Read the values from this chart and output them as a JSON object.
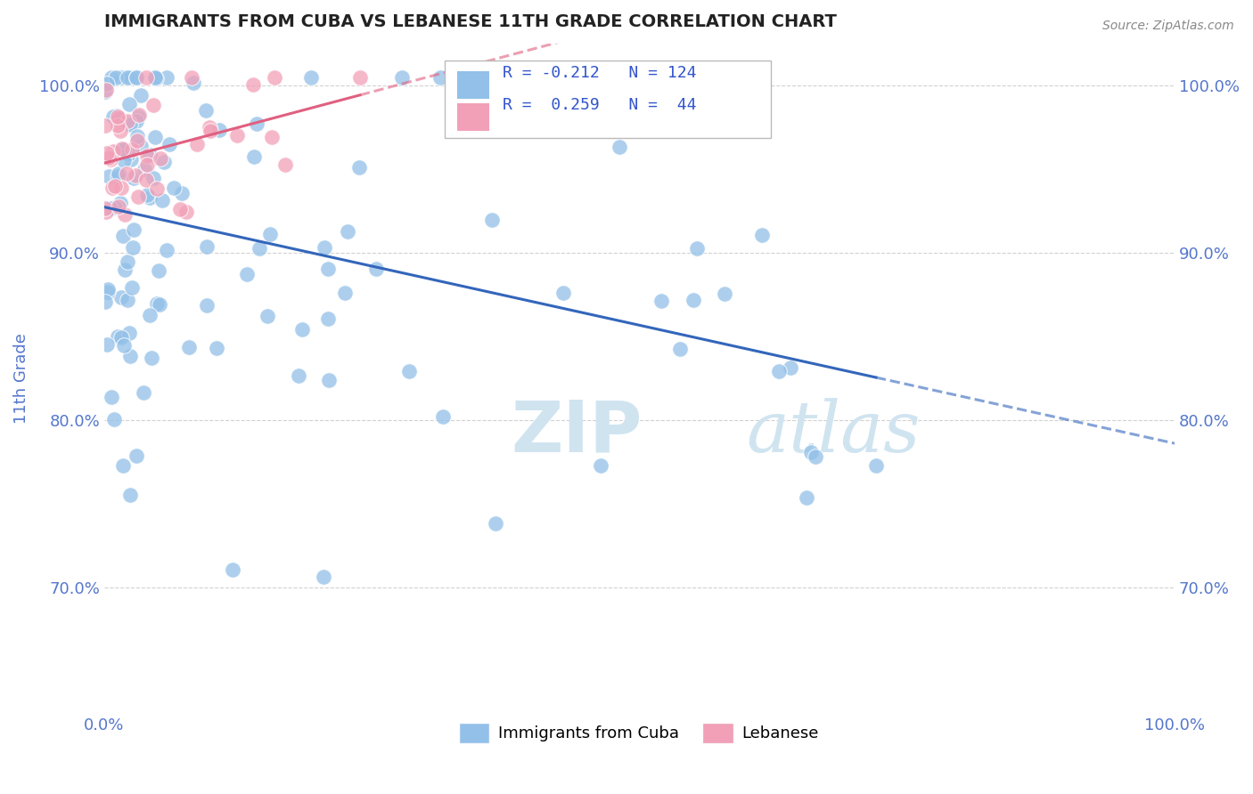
{
  "title": "IMMIGRANTS FROM CUBA VS LEBANESE 11TH GRADE CORRELATION CHART",
  "source": "Source: ZipAtlas.com",
  "ylabel": "11th Grade",
  "xlim": [
    0.0,
    1.0
  ],
  "ylim": [
    0.625,
    1.025
  ],
  "x_tick_labels": [
    "0.0%",
    "100.0%"
  ],
  "y_tick_labels": [
    "70.0%",
    "80.0%",
    "90.0%",
    "100.0%"
  ],
  "y_tick_values": [
    0.7,
    0.8,
    0.9,
    1.0
  ],
  "legend_labels": [
    "Immigrants from Cuba",
    "Lebanese"
  ],
  "legend_r_cuba": "R = -0.212",
  "legend_n_cuba": "N = 124",
  "legend_r_leb": "R =  0.259",
  "legend_n_leb": "N =  44",
  "color_cuba": "#92C0E8",
  "color_leb": "#F2A0B8",
  "color_trend_cuba": "#3366BB",
  "color_trend_leb": "#E06080",
  "watermark_color": "#D0E4F0",
  "background_color": "#ffffff",
  "grid_color": "#cccccc",
  "title_color": "#222222",
  "axis_label_color": "#5577CC",
  "blue_text": "#3355CC"
}
